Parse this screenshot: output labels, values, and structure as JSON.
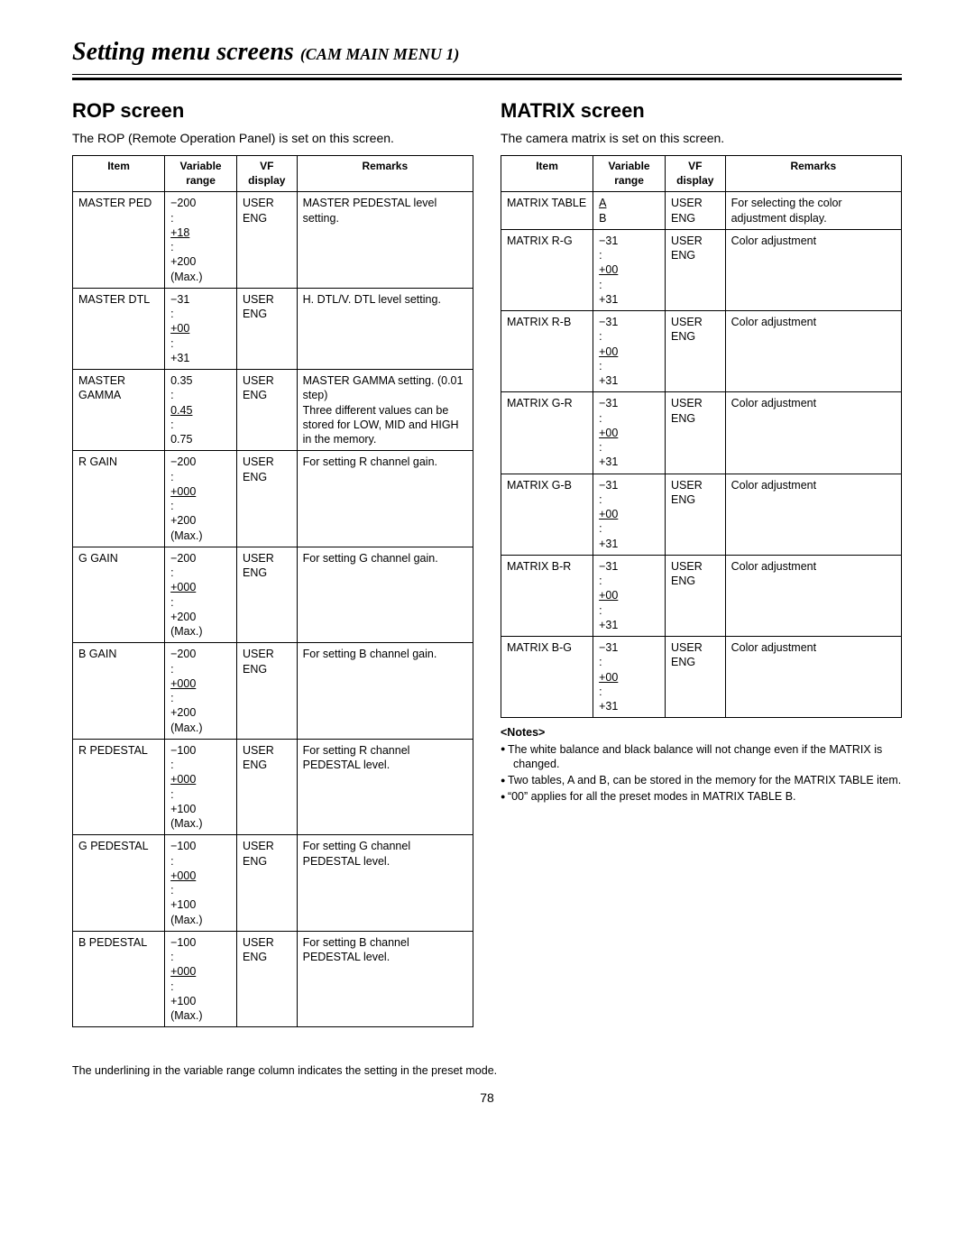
{
  "page_title_main": "Setting menu screens",
  "page_title_sub": "(CAM MAIN MENU 1)",
  "page_number": "78",
  "footnote": "The underlining in the variable range column indicates the setting in the preset mode.",
  "left": {
    "heading": "ROP screen",
    "intro": "The ROP (Remote Operation Panel) is set on this screen.",
    "headers": [
      "Item",
      "Variable range",
      "VF display",
      "Remarks"
    ],
    "rows": [
      {
        "item": "MASTER PED",
        "range": [
          "−200",
          ":",
          "+18",
          ":",
          "+200",
          "(Max.)"
        ],
        "default_idx": 2,
        "vf": "USER\nENG",
        "remarks": "MASTER PEDESTAL level setting."
      },
      {
        "item": "MASTER DTL",
        "range": [
          "−31",
          ":",
          "+00",
          ":",
          "+31"
        ],
        "default_idx": 2,
        "vf": "USER\nENG",
        "remarks": "H. DTL/V. DTL level setting."
      },
      {
        "item": "MASTER GAMMA",
        "range": [
          "0.35",
          ":",
          "0.45",
          ":",
          "0.75"
        ],
        "default_idx": 2,
        "vf": "USER\nENG",
        "remarks": "MASTER GAMMA setting. (0.01 step)\nThree different values can be stored for LOW, MID and HIGH in the memory."
      },
      {
        "item": "R GAIN",
        "range": [
          "−200",
          ":",
          "+000",
          ":",
          "+200",
          "(Max.)"
        ],
        "default_idx": 2,
        "vf": "USER\nENG",
        "remarks": "For setting R channel gain."
      },
      {
        "item": "G GAIN",
        "range": [
          "−200",
          ":",
          "+000",
          ":",
          "+200",
          "(Max.)"
        ],
        "default_idx": 2,
        "vf": "USER\nENG",
        "remarks": "For setting G channel gain."
      },
      {
        "item": "B GAIN",
        "range": [
          "−200",
          ":",
          "+000",
          ":",
          "+200",
          "(Max.)"
        ],
        "default_idx": 2,
        "vf": "USER\nENG",
        "remarks": "For setting B channel gain."
      },
      {
        "item": "R PEDESTAL",
        "range": [
          "−100",
          ":",
          "+000",
          ":",
          "+100",
          "(Max.)"
        ],
        "default_idx": 2,
        "vf": "USER\nENG",
        "remarks": "For setting R channel PEDESTAL level."
      },
      {
        "item": "G PEDESTAL",
        "range": [
          "−100",
          ":",
          "+000",
          ":",
          "+100",
          "(Max.)"
        ],
        "default_idx": 2,
        "vf": "USER\nENG",
        "remarks": "For setting G channel PEDESTAL level."
      },
      {
        "item": "B PEDESTAL",
        "range": [
          "−100",
          ":",
          "+000",
          ":",
          "+100",
          "(Max.)"
        ],
        "default_idx": 2,
        "vf": "USER\nENG",
        "remarks": "For setting B channel PEDESTAL level."
      }
    ]
  },
  "right": {
    "heading": "MATRIX screen",
    "intro": "The camera matrix is set on this screen.",
    "headers": [
      "Item",
      "Variable range",
      "VF display",
      "Remarks"
    ],
    "rows": [
      {
        "item": "MATRIX TABLE",
        "range": [
          "A",
          "B"
        ],
        "default_idx": 0,
        "vf": "USER\nENG",
        "remarks": "For selecting the color adjustment display."
      },
      {
        "item": "MATRIX R-G",
        "range": [
          "−31",
          ":",
          "+00",
          ":",
          "+31"
        ],
        "default_idx": 2,
        "vf": "USER\nENG",
        "remarks": "Color adjustment"
      },
      {
        "item": "MATRIX R-B",
        "range": [
          "−31",
          ":",
          "+00",
          ":",
          "+31"
        ],
        "default_idx": 2,
        "vf": "USER\nENG",
        "remarks": "Color adjustment"
      },
      {
        "item": "MATRIX G-R",
        "range": [
          "−31",
          ":",
          "+00",
          ":",
          "+31"
        ],
        "default_idx": 2,
        "vf": "USER\nENG",
        "remarks": "Color adjustment"
      },
      {
        "item": "MATRIX G-B",
        "range": [
          "−31",
          ":",
          "+00",
          ":",
          "+31"
        ],
        "default_idx": 2,
        "vf": "USER\nENG",
        "remarks": "Color adjustment"
      },
      {
        "item": "MATRIX B-R",
        "range": [
          "−31",
          ":",
          "+00",
          ":",
          "+31"
        ],
        "default_idx": 2,
        "vf": "USER\nENG",
        "remarks": "Color adjustment"
      },
      {
        "item": "MATRIX B-G",
        "range": [
          "−31",
          ":",
          "+00",
          ":",
          "+31"
        ],
        "default_idx": 2,
        "vf": "USER\nENG",
        "remarks": "Color adjustment"
      }
    ],
    "notes_heading": "<Notes>",
    "notes": [
      "The white balance and black balance will not change even if the MATRIX is changed.",
      "Two tables, A and B, can be stored in the memory for the MATRIX TABLE item.",
      "“00” applies for all the preset modes in MATRIX TABLE B."
    ]
  }
}
